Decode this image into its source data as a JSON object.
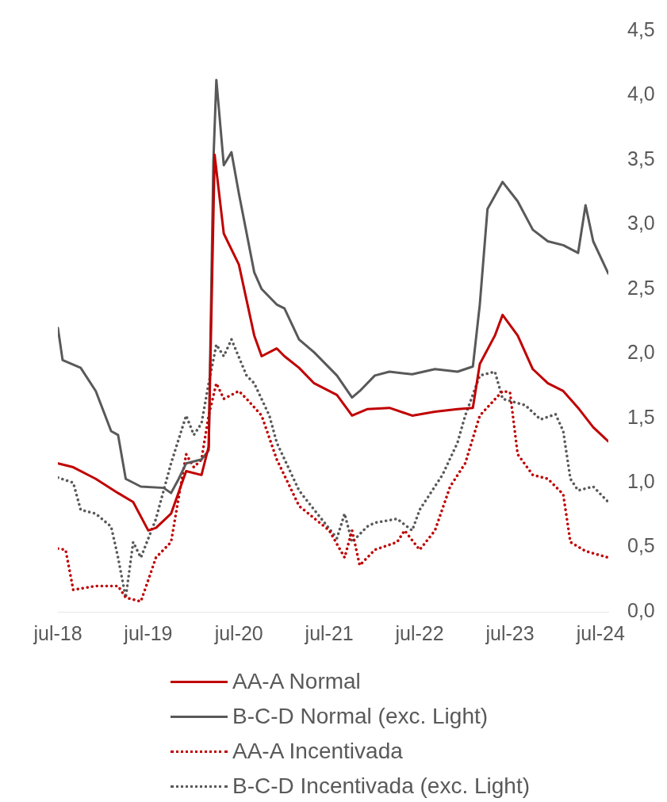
{
  "chart_data": {
    "type": "line",
    "xlim": [
      "2018-07",
      "2024-08"
    ],
    "xticks": [
      {
        "value": "2018-07",
        "label": "jul-18"
      },
      {
        "value": "2019-07",
        "label": "jul-19"
      },
      {
        "value": "2020-07",
        "label": "jul-20"
      },
      {
        "value": "2021-07",
        "label": "jul-21"
      },
      {
        "value": "2022-07",
        "label": "jul-22"
      },
      {
        "value": "2023-07",
        "label": "jul-23"
      },
      {
        "value": "2024-07",
        "label": "jul-24"
      }
    ],
    "ylim": [
      0,
      4.5
    ],
    "yticks": [
      {
        "value": 0,
        "label": "0,0"
      },
      {
        "value": 0.5,
        "label": "0,5"
      },
      {
        "value": 1,
        "label": "1,0"
      },
      {
        "value": 1.5,
        "label": "1,5"
      },
      {
        "value": 2,
        "label": "2,0"
      },
      {
        "value": 2.5,
        "label": "2,5"
      },
      {
        "value": 3,
        "label": "3,0"
      },
      {
        "value": 3.5,
        "label": "3,5"
      },
      {
        "value": 4,
        "label": "4,0"
      },
      {
        "value": 4.5,
        "label": "4,5"
      }
    ],
    "legend": "bottom",
    "series": [
      {
        "name": "AA-A Normal",
        "color": "#c00000",
        "line_style": "solid",
        "x": [
          "2018-07",
          "2018-09",
          "2018-12",
          "2019-03",
          "2019-05",
          "2019-07",
          "2019-08",
          "2019-10",
          "2019-12",
          "2020-02",
          "2020-03-01",
          "2020-03-25",
          "2020-05",
          "2020-07",
          "2020-09",
          "2020-10",
          "2020-12",
          "2021-01",
          "2021-03",
          "2021-05",
          "2021-08",
          "2021-10",
          "2021-12",
          "2022-03",
          "2022-06",
          "2022-09",
          "2022-12",
          "2023-02",
          "2023-03",
          "2023-05",
          "2023-06",
          "2023-08",
          "2023-10",
          "2023-12",
          "2024-02",
          "2024-04",
          "2024-06",
          "2024-08"
        ],
        "values": [
          1.15,
          1.12,
          1.03,
          0.92,
          0.85,
          0.63,
          0.65,
          0.76,
          1.09,
          1.06,
          1.28,
          3.54,
          2.93,
          2.69,
          2.14,
          1.98,
          2.04,
          1.98,
          1.89,
          1.77,
          1.68,
          1.52,
          1.57,
          1.58,
          1.52,
          1.55,
          1.57,
          1.58,
          1.92,
          2.14,
          2.3,
          2.14,
          1.88,
          1.77,
          1.71,
          1.58,
          1.43,
          1.32
        ]
      },
      {
        "name": "B-C-D Normal (exc. Light)",
        "color": "#595959",
        "line_style": "solid",
        "x": [
          "2018-07-01",
          "2018-07-20",
          "2018-10",
          "2018-12",
          "2019-02",
          "2019-03",
          "2019-04",
          "2019-06",
          "2019-09",
          "2019-10",
          "2019-11",
          "2019-12",
          "2020-02",
          "2020-03-01",
          "2020-03-20",
          "2020-04",
          "2020-05",
          "2020-06",
          "2020-07",
          "2020-09",
          "2020-10",
          "2020-12",
          "2021-01",
          "2021-03",
          "2021-05",
          "2021-08",
          "2021-10",
          "2021-11",
          "2022-01",
          "2022-03",
          "2022-06",
          "2022-09",
          "2022-12",
          "2023-02",
          "2023-03",
          "2023-04",
          "2023-06",
          "2023-08",
          "2023-10",
          "2023-12",
          "2024-02",
          "2024-04",
          "2024-05",
          "2024-06",
          "2024-08"
        ],
        "values": [
          2.2,
          1.95,
          1.89,
          1.71,
          1.4,
          1.37,
          1.03,
          0.97,
          0.96,
          0.92,
          1.03,
          1.15,
          1.18,
          1.25,
          3.49,
          4.12,
          3.46,
          3.56,
          3.24,
          2.63,
          2.5,
          2.38,
          2.35,
          2.11,
          2.01,
          1.83,
          1.66,
          1.71,
          1.83,
          1.86,
          1.84,
          1.88,
          1.86,
          1.9,
          2.38,
          3.12,
          3.33,
          3.18,
          2.96,
          2.87,
          2.84,
          2.78,
          3.15,
          2.87,
          2.62
        ]
      },
      {
        "name": "AA-A Incentivada",
        "color": "#c00000",
        "line_style": "dotted",
        "x": [
          "2018-07",
          "2018-08",
          "2018-09",
          "2018-12",
          "2019-03",
          "2019-04",
          "2019-06",
          "2019-08",
          "2019-10",
          "2019-12",
          "2020-01",
          "2020-02",
          "2020-03",
          "2020-04",
          "2020-05",
          "2020-07",
          "2020-08",
          "2020-10",
          "2020-12",
          "2021-03",
          "2021-07",
          "2021-09",
          "2021-10",
          "2021-11",
          "2022-01",
          "2022-04",
          "2022-05",
          "2022-07",
          "2022-09",
          "2022-11",
          "2023-01",
          "2023-03",
          "2023-06",
          "2023-07",
          "2023-08",
          "2023-10",
          "2023-12",
          "2024-02",
          "2024-03",
          "2024-05",
          "2024-08"
        ],
        "values": [
          0.49,
          0.48,
          0.17,
          0.2,
          0.2,
          0.11,
          0.08,
          0.42,
          0.54,
          1.22,
          1.12,
          1.18,
          1.52,
          1.77,
          1.65,
          1.71,
          1.65,
          1.52,
          1.18,
          0.82,
          0.63,
          0.42,
          0.63,
          0.36,
          0.48,
          0.54,
          0.63,
          0.48,
          0.63,
          0.97,
          1.15,
          1.52,
          1.71,
          1.7,
          1.22,
          1.06,
          1.03,
          0.91,
          0.54,
          0.47,
          0.42
        ]
      },
      {
        "name": "B-C-D Incentivada (exc. Light)",
        "color": "#595959",
        "line_style": "dotted",
        "x": [
          "2018-07",
          "2018-09",
          "2018-10",
          "2018-12",
          "2019-02",
          "2019-03",
          "2019-04",
          "2019-05",
          "2019-06",
          "2019-08",
          "2019-10",
          "2019-12",
          "2020-01",
          "2020-02",
          "2020-03",
          "2020-04",
          "2020-05",
          "2020-06",
          "2020-08",
          "2020-09",
          "2020-11",
          "2020-12",
          "2021-03",
          "2021-05",
          "2021-08",
          "2021-09",
          "2021-10",
          "2021-12",
          "2022-01",
          "2022-04",
          "2022-06",
          "2022-07",
          "2022-10",
          "2022-12",
          "2023-01",
          "2023-03",
          "2023-05",
          "2023-06",
          "2023-09",
          "2023-11",
          "2024-01",
          "2024-02",
          "2024-03",
          "2024-04",
          "2024-06",
          "2024-08"
        ],
        "values": [
          1.04,
          1.0,
          0.79,
          0.76,
          0.66,
          0.42,
          0.11,
          0.54,
          0.42,
          0.72,
          1.15,
          1.52,
          1.37,
          1.46,
          1.77,
          2.07,
          1.98,
          2.11,
          1.83,
          1.77,
          1.52,
          1.31,
          0.94,
          0.79,
          0.57,
          0.76,
          0.54,
          0.66,
          0.69,
          0.72,
          0.63,
          0.79,
          1.06,
          1.31,
          1.52,
          1.83,
          1.86,
          1.65,
          1.6,
          1.49,
          1.53,
          1.4,
          1.03,
          0.94,
          0.97,
          0.85
        ]
      }
    ]
  }
}
